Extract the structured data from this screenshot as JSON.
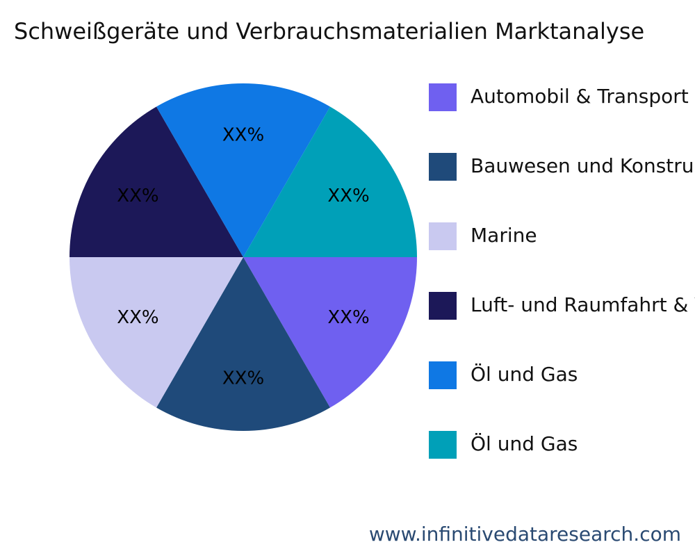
{
  "chart_data": {
    "type": "pie",
    "title": "Schweißgeräte und Verbrauchsmaterialien Marktanalyse",
    "categories": [
      "Automobil & Transport",
      "Bauwesen und Konstruktion",
      "Marine",
      "Luft- und Raumfahrt & Verteidigung",
      "Öl und Gas",
      "Öl und Gas"
    ],
    "values": [
      16.67,
      16.67,
      16.67,
      16.67,
      16.67,
      16.67
    ],
    "value_labels": [
      "XX%",
      "XX%",
      "XX%",
      "XX%",
      "XX%",
      "XX%"
    ],
    "colors": [
      "#6f60f0",
      "#1f4a7a",
      "#c9c9f0",
      "#1c1858",
      "#0f78e4",
      "#00a0b8"
    ],
    "legend": "right",
    "source": "www.infinitivedataresearch.com"
  }
}
